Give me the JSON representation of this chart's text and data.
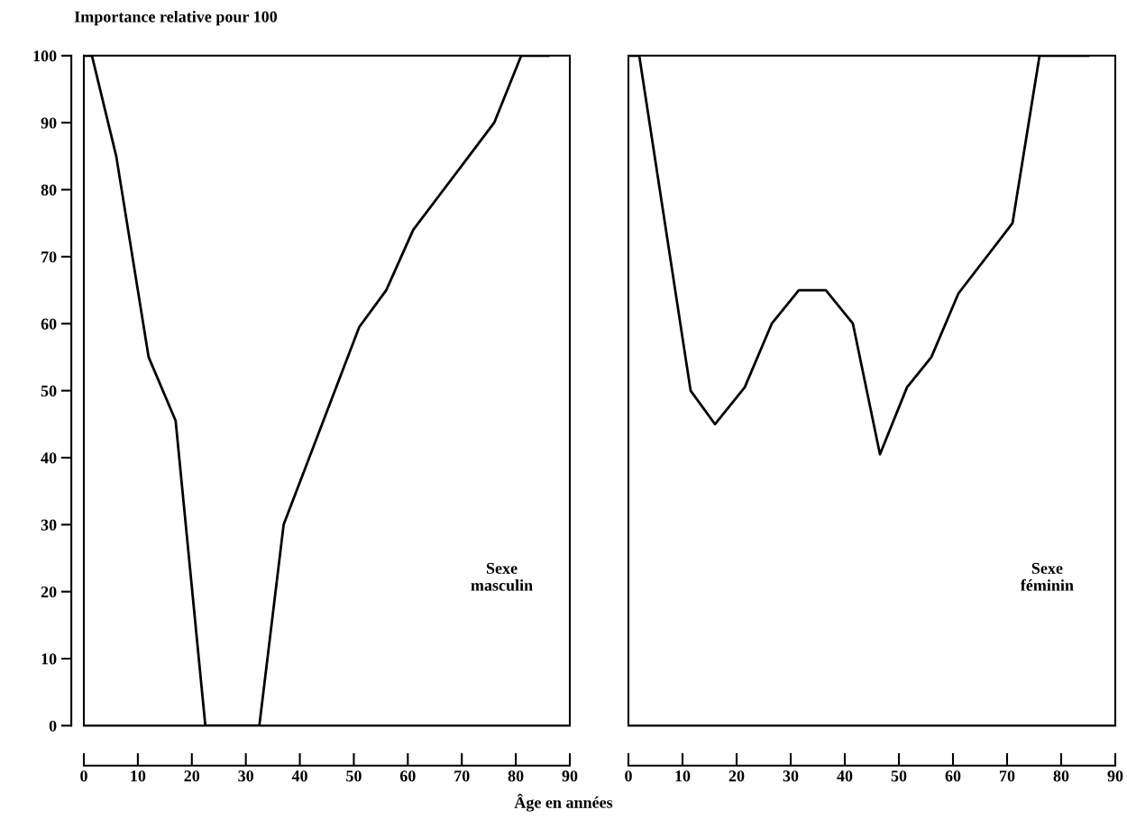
{
  "chart_data": [
    {
      "type": "line",
      "ylabel": "Importance relative pour 100",
      "xlabel": "Âge en années",
      "x": [
        0,
        1.5,
        6,
        12,
        17,
        22.5,
        32.5,
        37,
        51,
        56,
        61,
        76,
        81,
        86
      ],
      "series": [
        {
          "color": "#000000",
          "values": [
            100,
            100,
            85,
            55,
            45.5,
            0,
            0,
            30,
            59.5,
            65,
            74,
            90,
            100,
            100
          ]
        }
      ],
      "xlim": [
        0,
        90
      ],
      "xticks": [
        0,
        10,
        20,
        30,
        40,
        50,
        60,
        70,
        80,
        90
      ],
      "ylim": [
        0,
        100
      ],
      "yticks": [
        0,
        10,
        20,
        30,
        40,
        50,
        60,
        70,
        80,
        90,
        100
      ],
      "annotations": [
        "Sexe\nmasculin"
      ]
    },
    {
      "type": "line",
      "x": [
        0,
        2,
        11.5,
        16,
        21.5,
        26.5,
        31.5,
        36.5,
        41.5,
        46.5,
        51.5,
        56,
        61,
        71,
        76,
        85
      ],
      "series": [
        {
          "color": "#000000",
          "values": [
            100,
            100,
            50,
            45,
            50.5,
            60,
            65,
            65,
            60,
            40.5,
            50.5,
            55,
            64.5,
            75,
            100,
            100
          ]
        }
      ],
      "xlim": [
        0,
        90
      ],
      "xticks": [
        0,
        10,
        20,
        30,
        40,
        50,
        60,
        70,
        80,
        90
      ],
      "ylim": [
        0,
        100
      ],
      "yticks": [
        0,
        10,
        20,
        30,
        40,
        50,
        60,
        70,
        80,
        90,
        100
      ],
      "tick_labels": "x",
      "annotations": [
        "Sexe\nféminin"
      ]
    }
  ]
}
